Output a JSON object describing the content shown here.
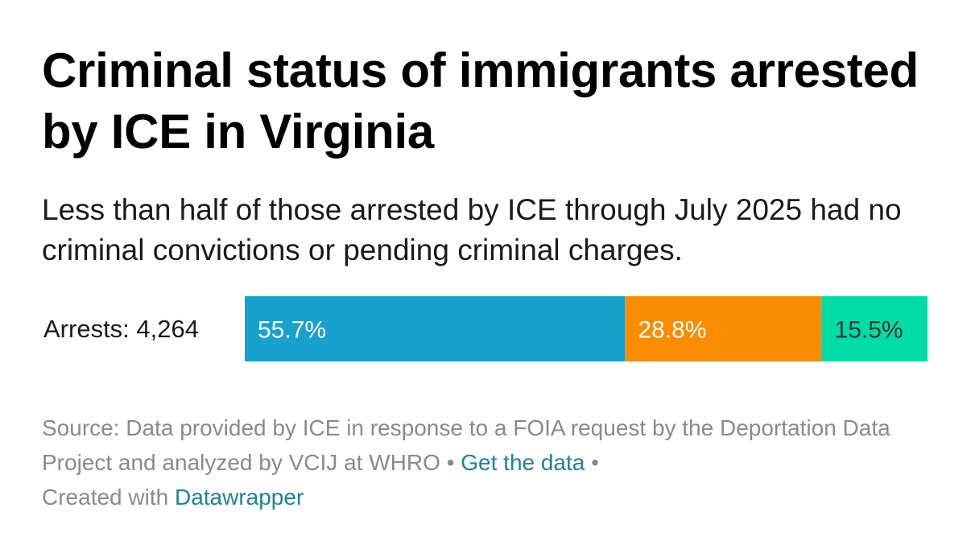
{
  "title": "Criminal status of immigrants arrested by ICE in Virginia",
  "subtitle": "Less than half of those arrested by ICE through July 2025 had no criminal convictions or pending criminal charges.",
  "footer": {
    "source": "Source: Data provided by ICE in response to a FOIA request by the Deportation Data Project and analyzed by VCIJ at WHRO",
    "separator": "•",
    "get_data_link": "Get the data",
    "created_with": "Created with",
    "datawrapper_link": "Datawrapper"
  },
  "chart_data": {
    "type": "bar",
    "orientation": "horizontal-stacked",
    "categories": [
      "Arrests: 4,264"
    ],
    "series": [
      {
        "values": [
          55.7
        ],
        "label": "55.7%",
        "color": "#18a1cd",
        "label_color": "#ffffff"
      },
      {
        "values": [
          28.8
        ],
        "label": "28.8%",
        "color": "#fa8c00",
        "label_color": "#ffffff"
      },
      {
        "values": [
          15.5
        ],
        "label": "15.5%",
        "color": "#00dca6",
        "label_color": "#333333"
      }
    ],
    "xlim": [
      0,
      100
    ],
    "grid": false,
    "legend": "none"
  }
}
